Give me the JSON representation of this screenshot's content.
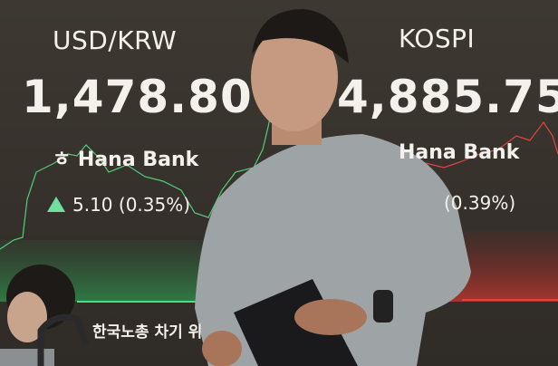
{
  "left_panel": {
    "label": "USD/KRW",
    "value": "1,478.80",
    "bank": "Hana Bank",
    "change": "5.10 (0.35%)",
    "direction": "up",
    "color": "#3fbf6a"
  },
  "right_panel": {
    "label": "KOSPI",
    "value": "4,885.75",
    "bank": "Hana Bank",
    "change": "(0.39%)",
    "color": "#d9473f"
  },
  "ticker_text": "한국노총 차기 위",
  "scene": {
    "foreground": "man in grey sweatshirt holding tablet",
    "background_person": "seated person with headset at lower left"
  }
}
